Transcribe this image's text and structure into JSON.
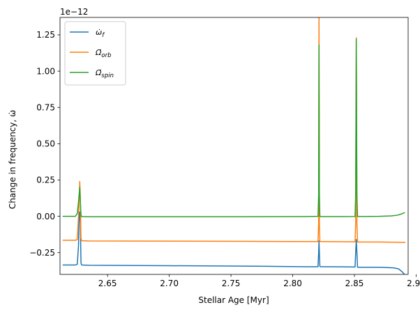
{
  "chart_data": {
    "type": "line",
    "xlabel": "Stellar Age [Myr]",
    "ylabel": "Change in frequency, ω̇",
    "scale_label": "1e−12",
    "xlim": [
      2.6115,
      2.8935
    ],
    "ylim": [
      -0.4,
      1.37
    ],
    "xticks": [
      2.65,
      2.7,
      2.75,
      2.8,
      2.85,
      2.9
    ],
    "xtick_labels": [
      "2.65",
      "2.70",
      "2.75",
      "2.80",
      "2.85",
      "2.90"
    ],
    "yticks": [
      -0.25,
      0.0,
      0.25,
      0.5,
      0.75,
      1.0,
      1.25
    ],
    "ytick_labels": [
      "−0.25",
      "0.00",
      "0.25",
      "0.50",
      "0.75",
      "1.00",
      "1.25"
    ],
    "grid": false,
    "legend_position": "top-left",
    "series": [
      {
        "name": "ω̇_f",
        "legend_main": "ω̇",
        "legend_sub": "f",
        "color": "#1f77b4",
        "x": [
          2.614,
          2.624,
          2.6255,
          2.6265,
          2.627,
          2.6275,
          2.628,
          2.6285,
          2.629,
          2.635,
          2.7,
          2.76,
          2.81,
          2.8205,
          2.821,
          2.8213,
          2.8216,
          2.822,
          2.8225,
          2.826,
          2.84,
          2.8505,
          2.851,
          2.8515,
          2.852,
          2.8525,
          2.853,
          2.857,
          2.87,
          2.882,
          2.886,
          2.889,
          2.891
        ],
        "y": [
          -0.335,
          -0.335,
          -0.33,
          -0.2,
          0.02,
          0.03,
          -0.05,
          -0.32,
          -0.335,
          -0.337,
          -0.34,
          -0.343,
          -0.347,
          -0.347,
          -0.25,
          -0.17,
          -0.25,
          -0.345,
          -0.347,
          -0.347,
          -0.348,
          -0.349,
          -0.25,
          -0.16,
          -0.25,
          -0.35,
          -0.351,
          -0.351,
          -0.351,
          -0.355,
          -0.363,
          -0.385,
          -0.405
        ]
      },
      {
        "name": "Ω̇_orb",
        "legend_main": "Ω̇",
        "legend_sub": "orb",
        "color": "#ff7f0e",
        "x": [
          2.614,
          2.624,
          2.6255,
          2.6262,
          2.627,
          2.6275,
          2.628,
          2.6285,
          2.629,
          2.635,
          2.7,
          2.76,
          2.81,
          2.8205,
          2.821,
          2.8213,
          2.8216,
          2.822,
          2.8225,
          2.826,
          2.84,
          2.8505,
          2.851,
          2.8515,
          2.852,
          2.8525,
          2.853,
          2.857,
          2.87,
          2.88,
          2.891
        ],
        "y": [
          -0.165,
          -0.165,
          -0.16,
          -0.05,
          0.1,
          0.24,
          0.12,
          -0.15,
          -0.168,
          -0.17,
          -0.171,
          -0.172,
          -0.174,
          -0.174,
          -0.05,
          1.38,
          -0.05,
          -0.172,
          -0.174,
          -0.174,
          -0.175,
          -0.176,
          -0.05,
          1.23,
          -0.05,
          -0.176,
          -0.177,
          -0.177,
          -0.177,
          -0.178,
          -0.18
        ]
      },
      {
        "name": "Ω̇_spin",
        "legend_main": "Ω̇",
        "legend_sub": "spin",
        "color": "#2ca02c",
        "x": [
          2.614,
          2.624,
          2.6255,
          2.6265,
          2.6275,
          2.628,
          2.6285,
          2.629,
          2.635,
          2.7,
          2.76,
          2.81,
          2.8205,
          2.821,
          2.8213,
          2.8216,
          2.822,
          2.8225,
          2.826,
          2.84,
          2.8505,
          2.851,
          2.8515,
          2.852,
          2.8525,
          2.853,
          2.857,
          2.87,
          2.88,
          2.885,
          2.888,
          2.8905
        ],
        "y": [
          0.0,
          0.0,
          0.02,
          0.1,
          0.2,
          0.1,
          0.01,
          -0.002,
          -0.003,
          -0.003,
          -0.003,
          -0.002,
          0.0,
          0.15,
          1.18,
          0.15,
          0.0,
          -0.002,
          -0.002,
          -0.002,
          -0.001,
          0.15,
          1.22,
          0.15,
          0.0,
          -0.001,
          -0.001,
          0.0,
          0.003,
          0.008,
          0.016,
          0.025
        ]
      }
    ]
  }
}
